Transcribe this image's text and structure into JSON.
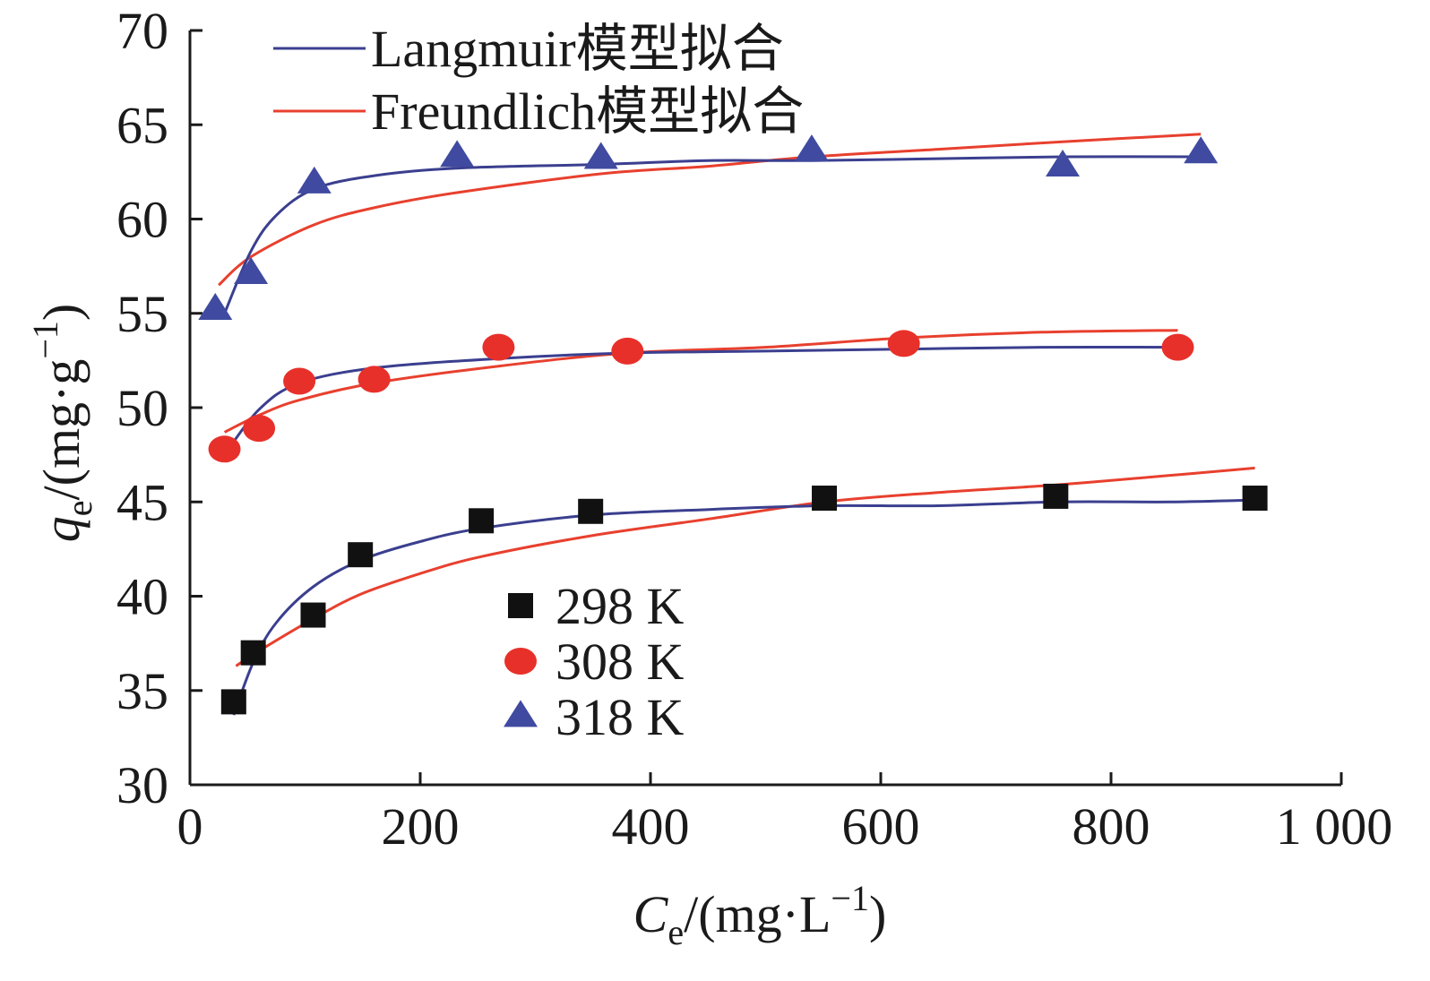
{
  "chart_data": {
    "type": "scatter",
    "title": "",
    "xlabel": {
      "symbol": "C",
      "subscript": "e",
      "unit_prefix": "/(mg·L",
      "unit_exp": "−1",
      "unit_suffix": ")"
    },
    "ylabel": {
      "symbol": "q",
      "subscript": "e",
      "unit_prefix": "/(mg·g",
      "unit_exp": "−1",
      "unit_suffix": ")"
    },
    "xlim": [
      0,
      1000
    ],
    "ylim": [
      30,
      70
    ],
    "x_ticks": [
      0,
      200,
      400,
      600,
      800,
      1000
    ],
    "x_tick_labels": [
      "0",
      "200",
      "400",
      "600",
      "800",
      "1 000"
    ],
    "y_ticks": [
      30,
      35,
      40,
      45,
      50,
      55,
      60,
      65,
      70
    ],
    "y_tick_labels": [
      "30",
      "35",
      "40",
      "45",
      "50",
      "55",
      "60",
      "65",
      "70"
    ],
    "grid": false,
    "colors": {
      "langmuir": "#3b3f8f",
      "freundlich": "#e8402e",
      "marker_298": "#111111",
      "marker_308": "#e8302a",
      "marker_318": "#3f4aa0",
      "axis": "#1a1a1a"
    },
    "fit_legend": [
      {
        "name": "Langmuir模型拟合",
        "key": "langmuir"
      },
      {
        "name": "Freundlich模型拟合",
        "key": "freundlich"
      }
    ],
    "series": [
      {
        "name": "298 K",
        "marker": "square",
        "x": [
          38,
          55,
          107,
          148,
          253,
          348,
          551,
          752,
          925
        ],
        "y": [
          34.4,
          37.0,
          39.0,
          42.2,
          44.0,
          44.5,
          45.2,
          45.3,
          45.2
        ],
        "langmuir_fit": {
          "x": [
            38,
            55,
            75,
            107,
            148,
            200,
            253,
            348,
            451,
            551,
            650,
            752,
            850,
            925
          ],
          "y": [
            33.7,
            36.5,
            38.6,
            40.5,
            41.9,
            42.9,
            43.6,
            44.3,
            44.6,
            44.8,
            44.8,
            45.0,
            45.0,
            45.1
          ]
        },
        "freundlich_fit": {
          "x": [
            40,
            60,
            107,
            148,
            200,
            253,
            348,
            451,
            551,
            650,
            752,
            850,
            925
          ],
          "y": [
            36.3,
            37.1,
            38.8,
            40.1,
            41.2,
            42.1,
            43.2,
            44.1,
            45.0,
            45.5,
            45.9,
            46.4,
            46.8
          ]
        }
      },
      {
        "name": "308 K",
        "marker": "circle",
        "x": [
          30,
          60,
          95,
          160,
          268,
          380,
          620,
          858
        ],
        "y": [
          47.8,
          48.9,
          51.4,
          51.5,
          53.2,
          53.0,
          53.4,
          53.2
        ],
        "langmuir_fit": {
          "x": [
            30,
            60,
            95,
            160,
            268,
            380,
            500,
            620,
            740,
            858
          ],
          "y": [
            47.5,
            49.9,
            51.3,
            52.1,
            52.6,
            52.9,
            53.0,
            53.1,
            53.2,
            53.2
          ]
        },
        "freundlich_fit": {
          "x": [
            30,
            60,
            95,
            160,
            268,
            380,
            500,
            620,
            740,
            858
          ],
          "y": [
            48.7,
            49.6,
            50.4,
            51.3,
            52.2,
            52.9,
            53.2,
            53.7,
            54.0,
            54.1
          ]
        }
      },
      {
        "name": "318 K",
        "marker": "triangle",
        "x": [
          22,
          53,
          108,
          232,
          357,
          540,
          758,
          878
        ],
        "y": [
          55.2,
          57.1,
          61.9,
          63.3,
          63.2,
          63.6,
          62.8,
          63.5
        ],
        "langmuir_fit": {
          "x": [
            30,
            53,
            75,
            108,
            160,
            232,
            357,
            450,
            540,
            650,
            758,
            878
          ],
          "y": [
            55.0,
            58.3,
            60.2,
            61.6,
            62.3,
            62.7,
            62.9,
            63.1,
            63.1,
            63.2,
            63.3,
            63.3
          ]
        },
        "freundlich_fit": {
          "x": [
            25,
            53,
            108,
            160,
            232,
            357,
            450,
            540,
            650,
            758,
            878
          ],
          "y": [
            56.5,
            58.0,
            59.7,
            60.6,
            61.4,
            62.4,
            62.8,
            63.3,
            63.7,
            64.1,
            64.5
          ]
        }
      }
    ]
  }
}
